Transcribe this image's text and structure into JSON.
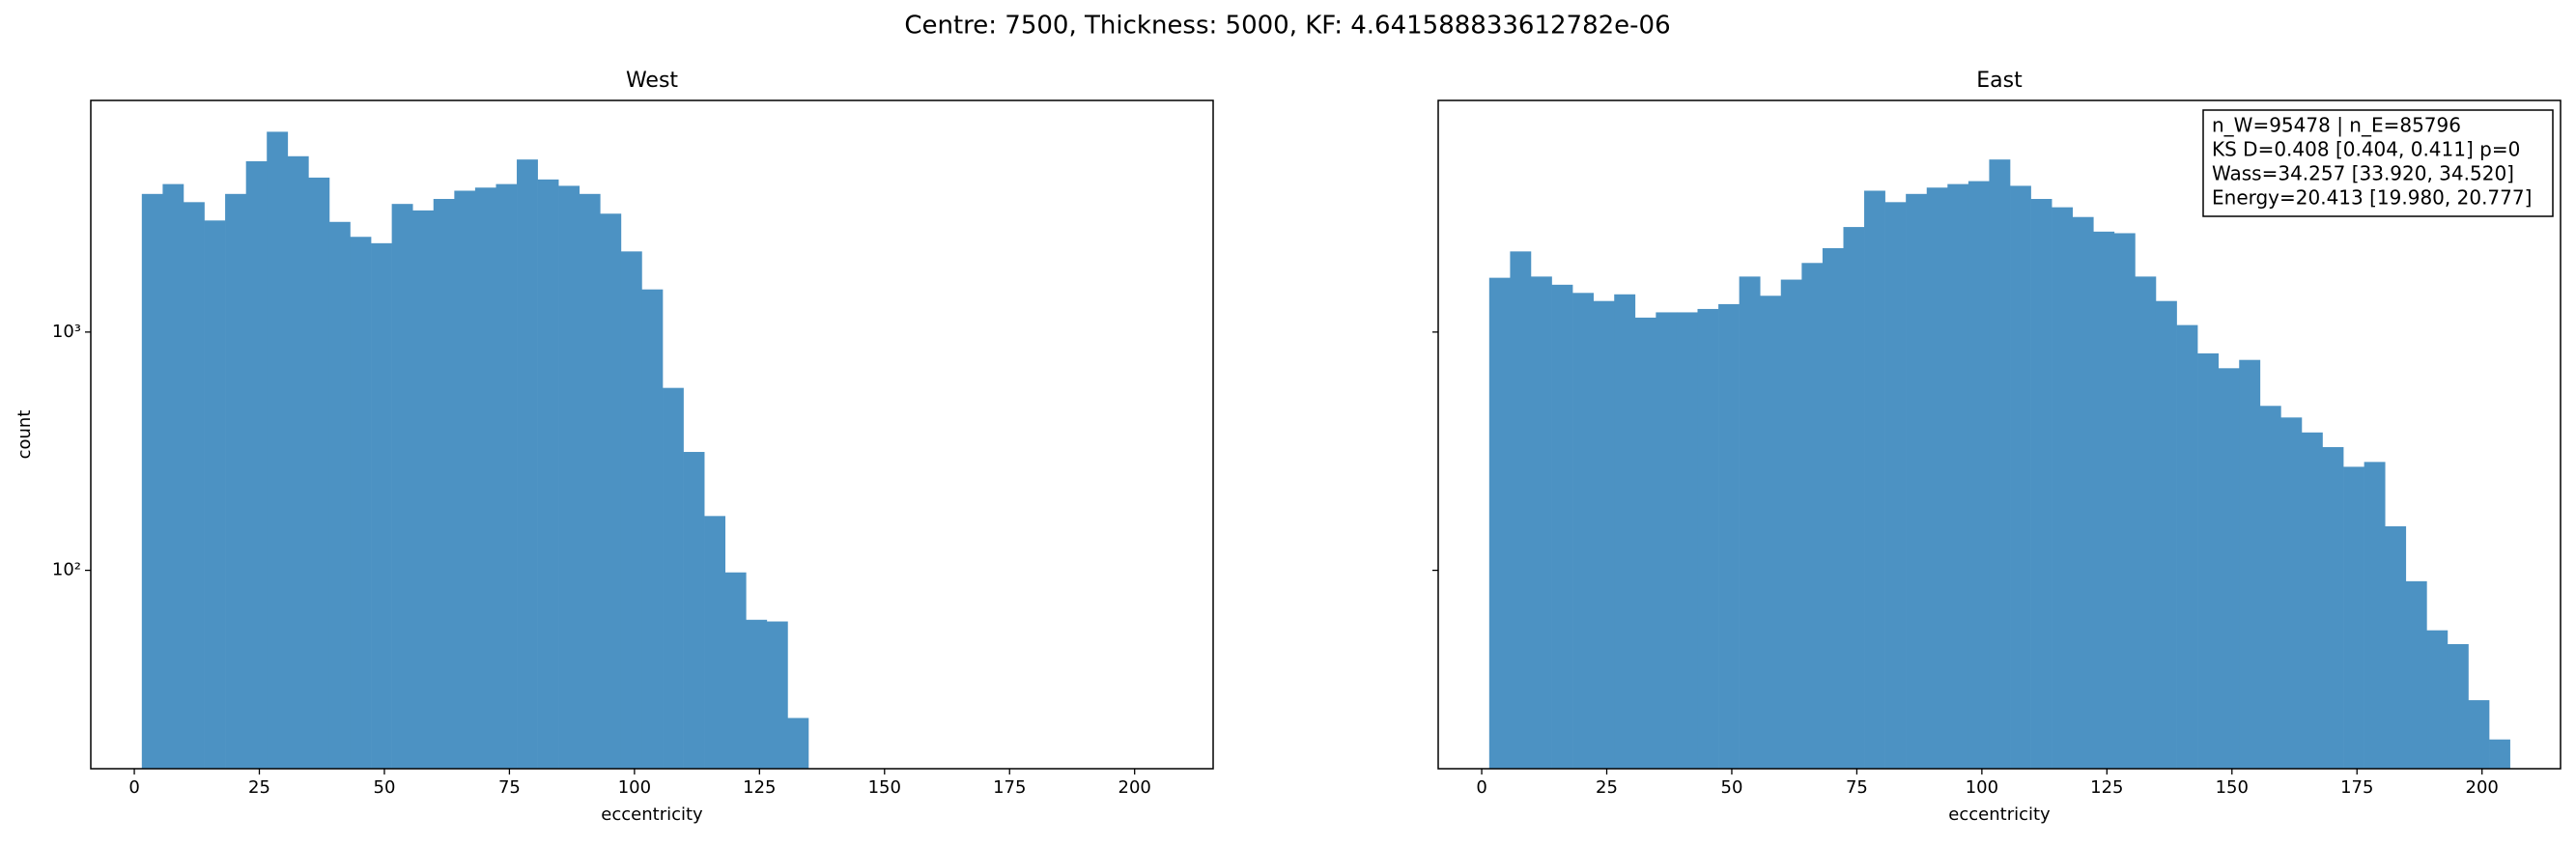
{
  "title": "Centre: 7500, Thickness: 5000, KF: 4.641588833612782e-06",
  "chart_data": [
    {
      "type": "histogram",
      "title": "West",
      "xlabel": "eccentricity",
      "ylabel": "count",
      "color": "#4c92c3",
      "bins": [
        1.5,
        5.67,
        9.83,
        14.0,
        18.16,
        22.33,
        26.49,
        30.66,
        34.82,
        38.99,
        43.15,
        47.32,
        51.48,
        55.65,
        59.81,
        63.98,
        68.14,
        72.31,
        76.47,
        80.64,
        84.8,
        88.97,
        93.13,
        97.3,
        101.46,
        105.63,
        109.79,
        113.96,
        118.12,
        122.29,
        126.45,
        130.62,
        134.78,
        138.95,
        143.11,
        147.28,
        151.44,
        155.61,
        159.77,
        163.94,
        168.1,
        172.27,
        176.43,
        180.6,
        184.76,
        188.93,
        193.09,
        197.26,
        201.42,
        205.59
      ],
      "counts": [
        3800,
        4180,
        3510,
        2940,
        3800,
        5210,
        6930,
        5470,
        4450,
        2900,
        2510,
        2360,
        3450,
        3240,
        3620,
        3920,
        4040,
        4180,
        5300,
        4370,
        4110,
        3800,
        3140,
        2180,
        1510,
        583,
        314,
        169,
        98,
        62,
        61,
        24,
        0,
        0,
        0,
        0,
        0,
        0,
        0,
        0,
        0,
        0,
        0,
        0,
        0,
        0,
        0,
        0,
        0
      ],
      "xlim": [
        -8.7,
        215.7
      ],
      "xticks": [
        0,
        25,
        50,
        75,
        100,
        125,
        150,
        175,
        200
      ],
      "ylim": [
        14.7,
        9380
      ],
      "yscale": "log",
      "show_ytick_labels": true,
      "yticks": [
        {
          "value": 100,
          "label": "10²"
        },
        {
          "value": 1000,
          "label": "10³"
        }
      ]
    },
    {
      "type": "histogram",
      "title": "East",
      "xlabel": "eccentricity",
      "color": "#4c92c3",
      "bins": [
        1.5,
        5.67,
        9.83,
        14.0,
        18.16,
        22.33,
        26.49,
        30.66,
        34.82,
        38.99,
        43.15,
        47.32,
        51.48,
        55.65,
        59.81,
        63.98,
        68.14,
        72.31,
        76.47,
        80.64,
        84.8,
        88.97,
        93.13,
        97.3,
        101.46,
        105.63,
        109.79,
        113.96,
        118.12,
        122.29,
        126.45,
        130.62,
        134.78,
        138.95,
        143.11,
        147.28,
        151.44,
        155.61,
        159.77,
        163.94,
        168.1,
        172.27,
        176.43,
        180.6,
        184.76,
        188.93,
        193.09,
        197.26,
        201.42,
        205.59
      ],
      "counts": [
        1690,
        2180,
        1710,
        1580,
        1460,
        1350,
        1440,
        1150,
        1210,
        1210,
        1250,
        1310,
        1710,
        1420,
        1660,
        1950,
        2250,
        2760,
        3920,
        3510,
        3800,
        4040,
        4180,
        4300,
        5300,
        4110,
        3620,
        3340,
        3040,
        2640,
        2600,
        1710,
        1350,
        1070,
        814,
        705,
        764,
        490,
        438,
        379,
        329,
        272,
        285,
        153,
        90,
        56,
        49,
        28.5,
        19.5
      ],
      "xlim": [
        -8.7,
        215.7
      ],
      "xticks": [
        0,
        25,
        50,
        75,
        100,
        125,
        150,
        175,
        200
      ],
      "ylim": [
        14.7,
        9380
      ],
      "yscale": "log",
      "show_ytick_labels": false,
      "yticks": [
        100,
        1000
      ],
      "annotation_lines": [
        "n_W=95478 | n_E=85796",
        "KS D=0.408 [0.404, 0.411]  p=0",
        "Wass=34.257 [33.920, 34.520]",
        "Energy=20.413 [19.980, 20.777]"
      ]
    }
  ]
}
